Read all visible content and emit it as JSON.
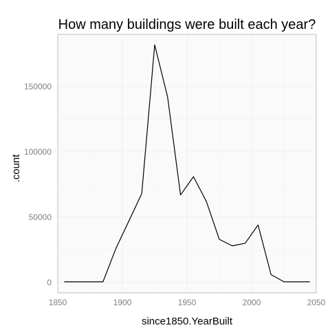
{
  "chart_data": {
    "type": "line",
    "title": "How many buildings were built each year?",
    "xlabel": "since1850.YearBuilt",
    "ylabel": ".count",
    "xlim": [
      1850,
      2050
    ],
    "ylim": [
      -8000,
      190000
    ],
    "xticks": [
      1850,
      1900,
      1950,
      2000,
      2050
    ],
    "yticks": [
      0,
      50000,
      100000,
      150000
    ],
    "grid": true,
    "legend": "none",
    "series": [
      {
        "x": [
          1855,
          1865,
          1875,
          1885,
          1895,
          1905,
          1915,
          1925,
          1935,
          1945,
          1955,
          1965,
          1975,
          1985,
          1995,
          2005,
          2015,
          2025,
          2035,
          2045
        ],
        "y": [
          500,
          500,
          500,
          500,
          26000,
          47000,
          68000,
          182000,
          142000,
          67000,
          81000,
          62000,
          33000,
          28000,
          30000,
          44000,
          6000,
          500,
          500,
          500
        ]
      }
    ],
    "colors": {
      "line": "#000000",
      "panel_bg": "#fafafa",
      "grid": "#f0f0f0",
      "border": "#bfbfbf",
      "tick_text": "#7f7f7f"
    }
  }
}
